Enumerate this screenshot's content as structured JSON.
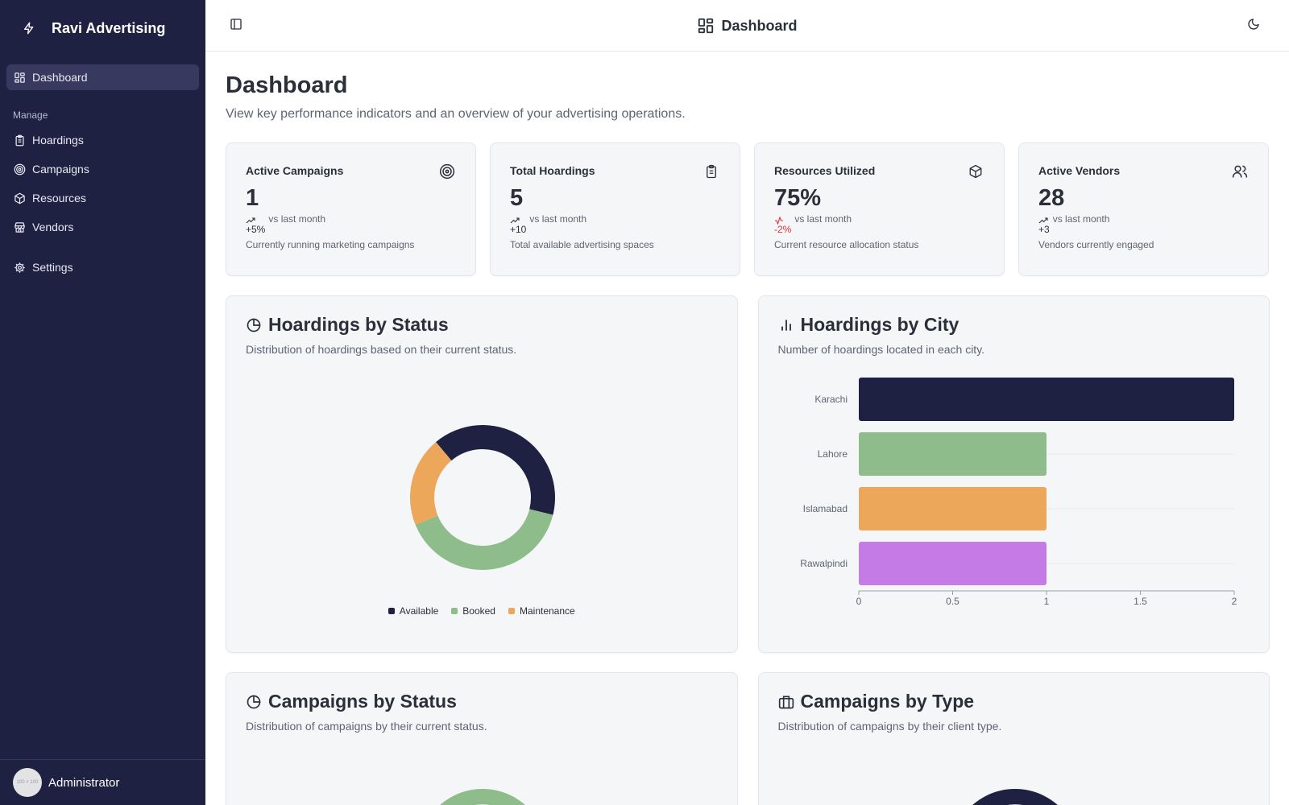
{
  "app": {
    "name": "Ravi Advertising"
  },
  "sidebar": {
    "dashboard_label": "Dashboard",
    "group_label": "Manage",
    "items": [
      {
        "label": "Hoardings",
        "icon": "clipboard-icon"
      },
      {
        "label": "Campaigns",
        "icon": "target-icon"
      },
      {
        "label": "Resources",
        "icon": "box-icon"
      },
      {
        "label": "Vendors",
        "icon": "store-icon"
      }
    ],
    "settings_label": "Settings",
    "user": {
      "name": "Administrator",
      "avatar_text": "100 × 100"
    }
  },
  "topbar": {
    "title": "Dashboard"
  },
  "page": {
    "title": "Dashboard",
    "description": "View key performance indicators and an overview of your advertising operations."
  },
  "kpis": [
    {
      "title": "Active Campaigns",
      "value": "1",
      "delta": "+5%",
      "vs": "vs last month",
      "desc": "Currently running marketing campaigns",
      "trend": "up",
      "icon": "target-icon"
    },
    {
      "title": "Total Hoardings",
      "value": "5",
      "delta": "+10",
      "vs": "vs last month",
      "desc": "Total available advertising spaces",
      "trend": "up",
      "icon": "clipboard-icon"
    },
    {
      "title": "Resources Utilized",
      "value": "75%",
      "delta": "-2%",
      "vs": "vs last month",
      "desc": "Current resource allocation status",
      "trend": "down",
      "icon": "box-icon"
    },
    {
      "title": "Active Vendors",
      "value": "28",
      "delta": "+3",
      "vs": "vs last month",
      "desc": "Vendors currently engaged",
      "trend": "up",
      "icon": "users-icon"
    }
  ],
  "cards": {
    "hoardings_status": {
      "title": "Hoardings by Status",
      "desc": "Distribution of hoardings based on their current status."
    },
    "hoardings_city": {
      "title": "Hoardings by City",
      "desc": "Number of hoardings located in each city."
    },
    "campaigns_status": {
      "title": "Campaigns by Status",
      "desc": "Distribution of campaigns by their current status."
    },
    "campaigns_type": {
      "title": "Campaigns by Type",
      "desc": "Distribution of campaigns by their client type."
    }
  },
  "colors": {
    "navy": "#1f2142",
    "green": "#8fbc8b",
    "orange": "#eca75b",
    "purple": "#c57be6",
    "negative": "#e0313a"
  },
  "chart_data": [
    {
      "type": "pie",
      "categories": [
        "Available",
        "Booked",
        "Maintenance"
      ],
      "values": [
        2,
        2,
        1
      ],
      "colors": [
        "#1f2142",
        "#8fbc8b",
        "#eca75b"
      ],
      "legend": "bottom"
    },
    {
      "type": "bar",
      "orientation": "horizontal",
      "categories": [
        "Karachi",
        "Lahore",
        "Islamabad",
        "Rawalpindi"
      ],
      "values": [
        2,
        1,
        1,
        1
      ],
      "colors": [
        "#1f2142",
        "#8fbc8b",
        "#eca75b",
        "#c57be6"
      ],
      "xlim": [
        0,
        2
      ],
      "xticks": [
        "0",
        "0.5",
        "1",
        "1.5",
        "2"
      ]
    }
  ]
}
